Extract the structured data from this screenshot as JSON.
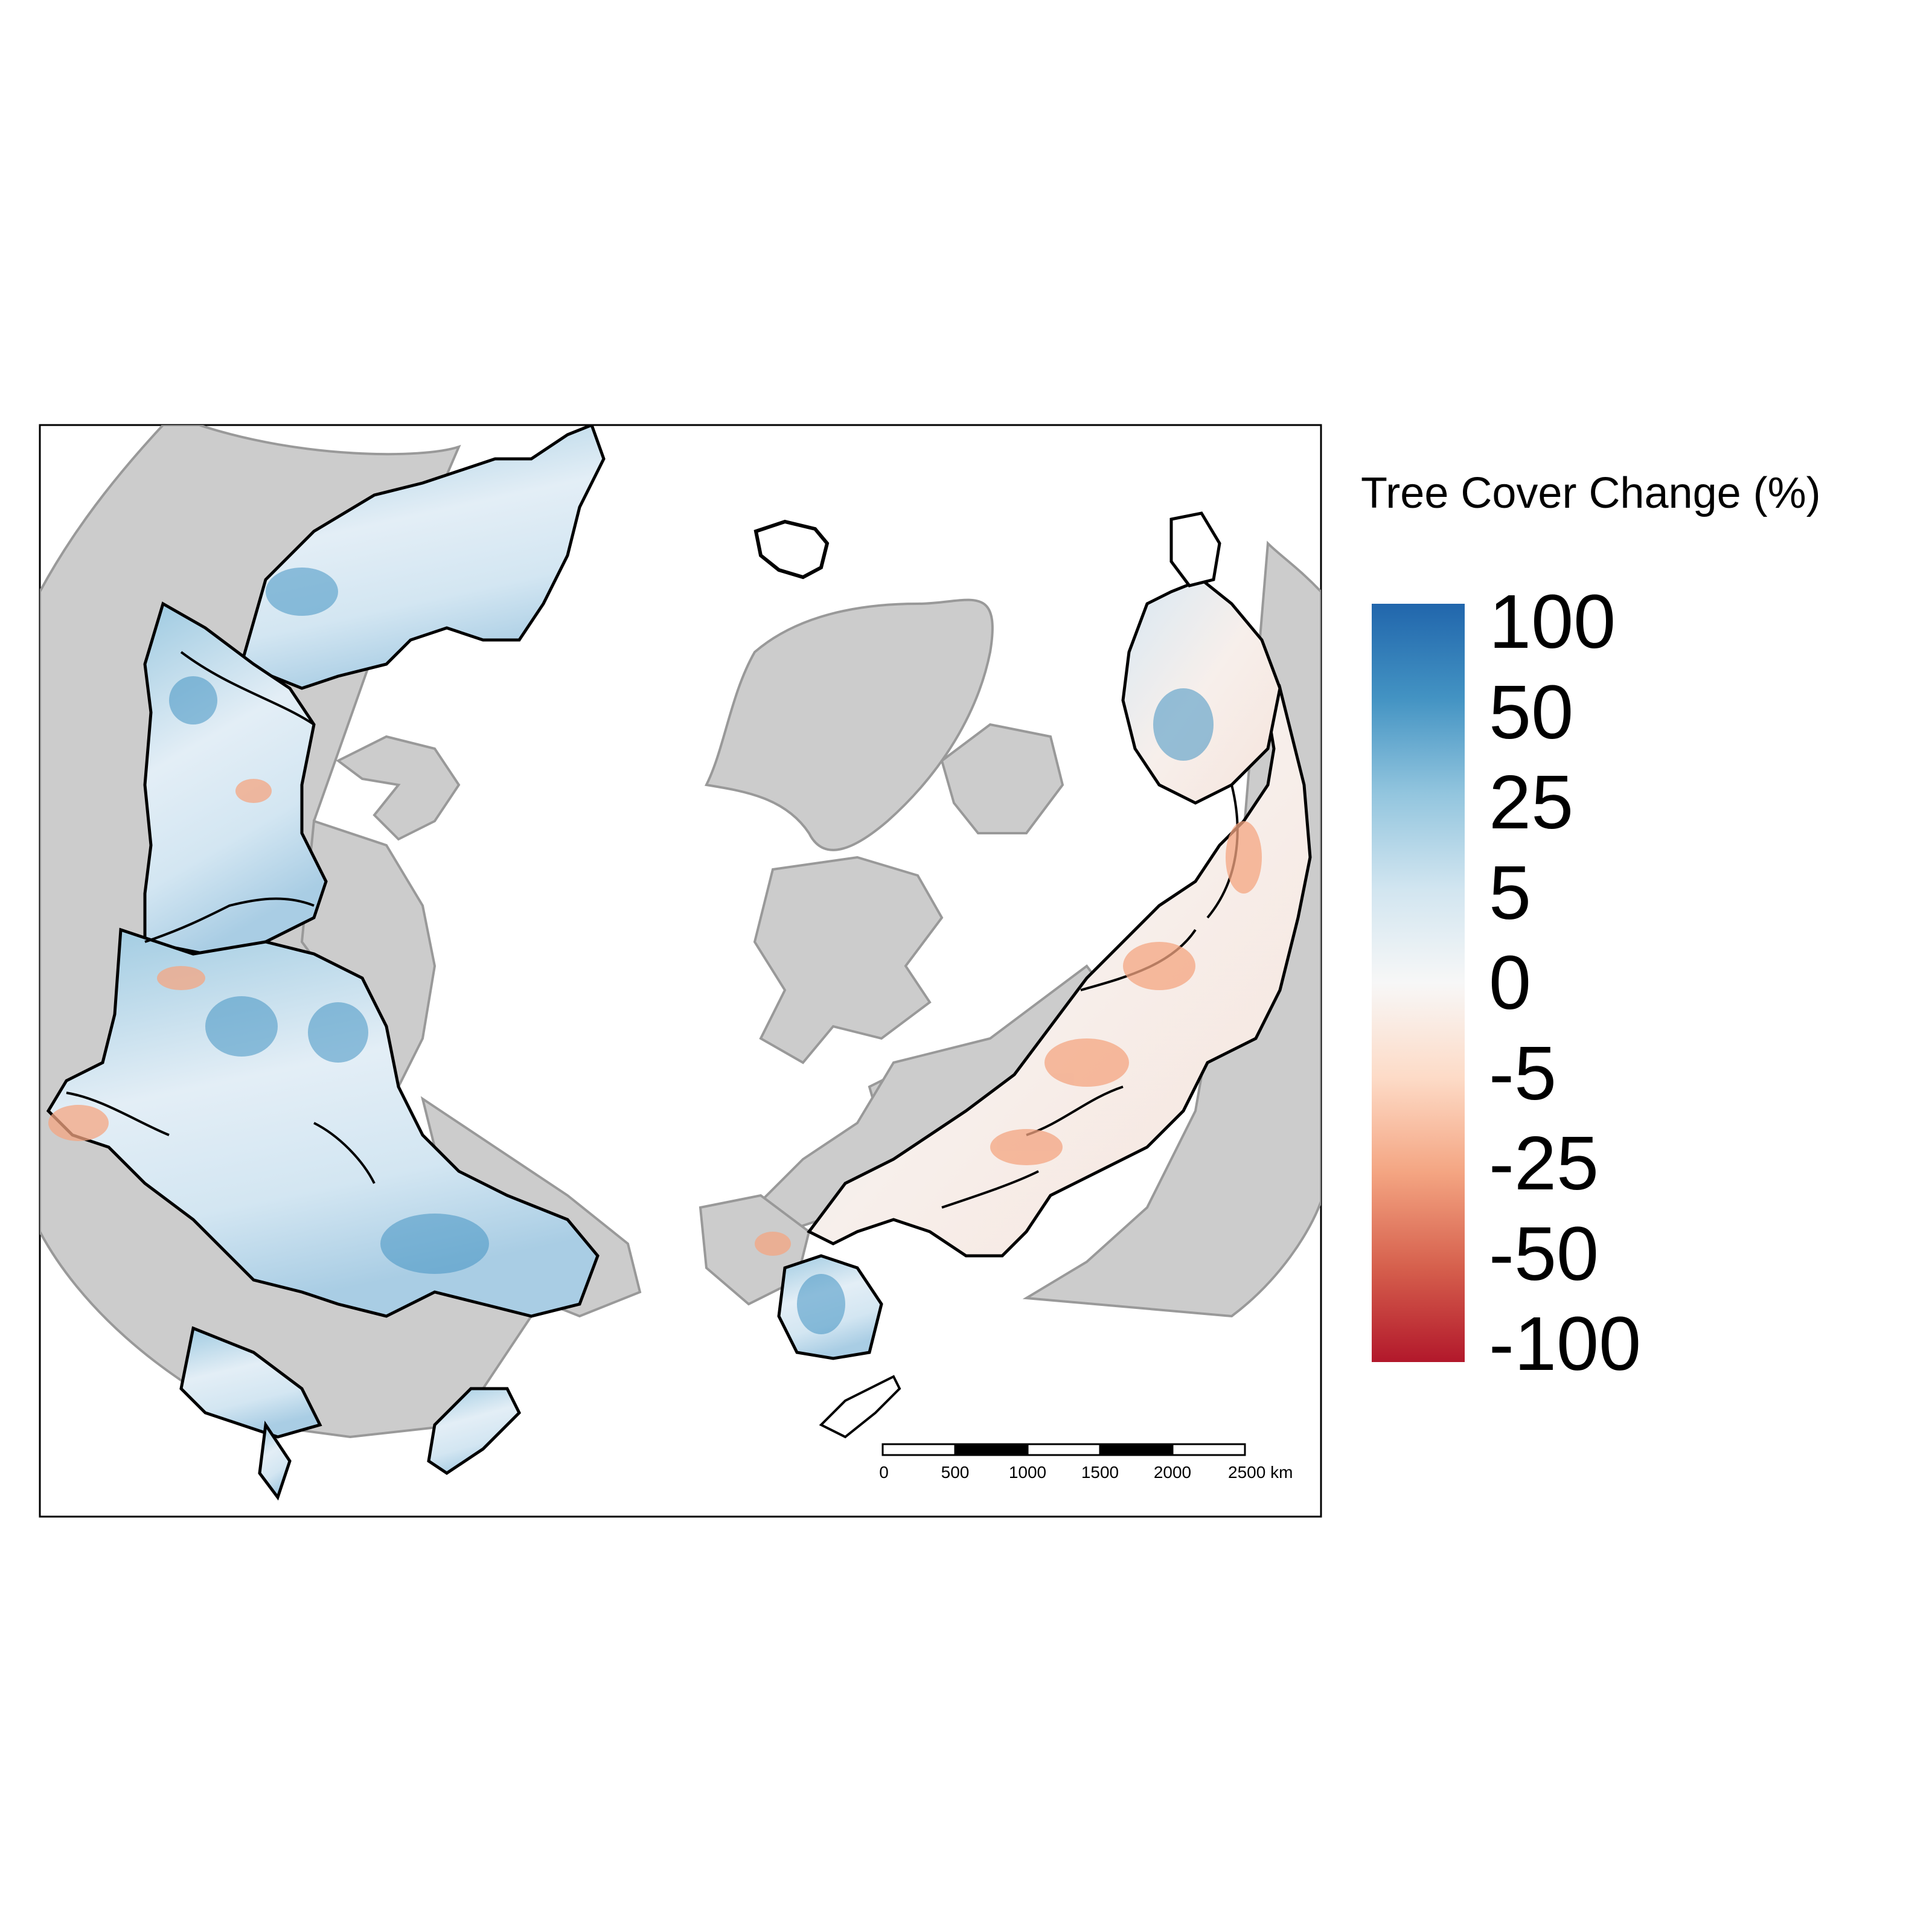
{
  "legend": {
    "title": "Tree Cover Change (%)",
    "ticks": [
      "100",
      "50",
      "25",
      "5",
      "0",
      "-5",
      "-25",
      "-50",
      "-100"
    ],
    "gradient_colors": [
      "#2166ac",
      "#4393c3",
      "#92c5de",
      "#d1e5f0",
      "#f7f7f7",
      "#fddbc7",
      "#f4a582",
      "#d6604d",
      "#b2182b"
    ]
  },
  "scale_bar": {
    "labels": [
      "0",
      "500",
      "1000",
      "1500",
      "2000",
      "2500 km"
    ]
  },
  "colors": {
    "land": "#cccccc",
    "coast": "#999999",
    "boundary": "#000000",
    "increase": "#4393c3",
    "decrease": "#d6604d"
  }
}
